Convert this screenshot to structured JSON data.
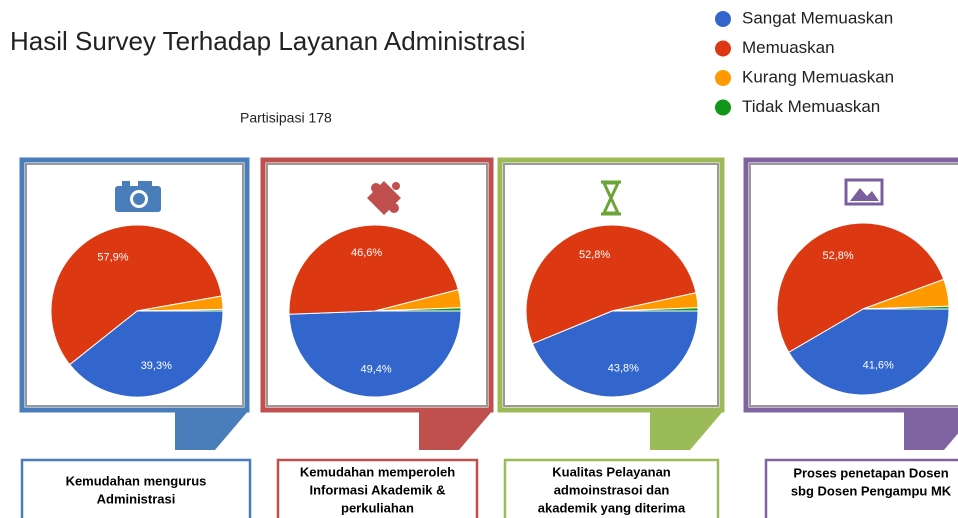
{
  "title": "Hasil Survey Terhadap Layanan Administrasi",
  "subtitle": "Partisipasi 178",
  "legend": {
    "categories": [
      "Sangat Memuaskan",
      "Memuaskan",
      "Kurang Memuaskan",
      "Tidak Memuaskan"
    ],
    "colors": [
      "#3366cc",
      "#dc3912",
      "#ff9900",
      "#109618"
    ]
  },
  "chart_data": [
    {
      "type": "pie",
      "title": [
        "Kemudahan mengurus",
        "Administrasi"
      ],
      "values": [
        39.3,
        57.9,
        2.5,
        0.3
      ],
      "value_labels": [
        "39,3%",
        "57,9%",
        null,
        null
      ]
    },
    {
      "type": "pie",
      "title": [
        "Kemudahan memperoleh",
        "Informasi Akademik &",
        "perkuliahan"
      ],
      "values": [
        49.4,
        46.6,
        3.4,
        0.6
      ],
      "value_labels": [
        "49,4%",
        "46,6%",
        null,
        null
      ]
    },
    {
      "type": "pie",
      "title": [
        "Kualitas Pelayanan",
        "admoinstrasoi dan",
        "akademik yang diterima"
      ],
      "values": [
        43.8,
        52.8,
        2.8,
        0.6
      ],
      "value_labels": [
        "43,8%",
        "52,8%",
        null,
        null
      ]
    },
    {
      "type": "pie",
      "title": [
        "Proses penetapan Dosen",
        "sbg Dosen Pengampu MK"
      ],
      "values": [
        41.6,
        52.8,
        5.1,
        0.5
      ],
      "value_labels": [
        "41,6%",
        "52,8%",
        null,
        null
      ]
    }
  ]
}
